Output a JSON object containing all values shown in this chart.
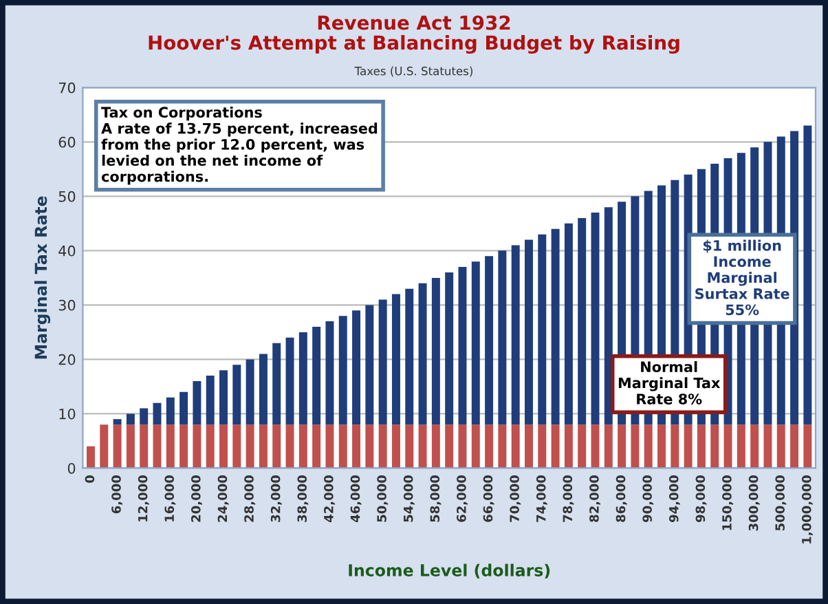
{
  "chart_data": {
    "type": "bar",
    "stacked": true,
    "title": "Revenue Act 1932\nHoover's Attempt at Balancing Budget by Raising",
    "subtitle": "Taxes (U.S. Statutes)",
    "xlabel": "Income Level (dollars)",
    "ylabel": "Marginal Tax Rate",
    "categories": [
      "0",
      null,
      "6,000",
      null,
      "12,000",
      null,
      "16,000",
      null,
      "20,000",
      null,
      "24,000",
      null,
      "28,000",
      null,
      "32,000",
      null,
      "38,000",
      null,
      "42,000",
      null,
      "46,000",
      null,
      "50,000",
      null,
      "54,000",
      null,
      "58,000",
      null,
      "62,000",
      null,
      "66,000",
      null,
      "70,000",
      null,
      "74,000",
      null,
      "78,000",
      null,
      "82,000",
      null,
      "86,000",
      null,
      "90,000",
      null,
      "94,000",
      null,
      "98,000",
      null,
      "150,000",
      null,
      "300,000",
      null,
      "500,000",
      null,
      "1,000,000"
    ],
    "series": [
      {
        "color": "#c0504d",
        "values": [
          4,
          8,
          8,
          8,
          8,
          8,
          8,
          8,
          8,
          8,
          8,
          8,
          8,
          8,
          8,
          8,
          8,
          8,
          8,
          8,
          8,
          8,
          8,
          8,
          8,
          8,
          8,
          8,
          8,
          8,
          8,
          8,
          8,
          8,
          8,
          8,
          8,
          8,
          8,
          8,
          8,
          8,
          8,
          8,
          8,
          8,
          8,
          8,
          8,
          8,
          8,
          8,
          8,
          8,
          8
        ]
      },
      {
        "color": "#1f3d7a",
        "values": [
          0,
          0,
          1,
          2,
          3,
          4,
          5,
          6,
          8,
          9,
          10,
          11,
          12,
          13,
          15,
          16,
          17,
          18,
          19,
          20,
          21,
          22,
          23,
          24,
          25,
          26,
          27,
          28,
          29,
          30,
          31,
          32,
          33,
          34,
          35,
          36,
          37,
          38,
          39,
          40,
          41,
          42,
          43,
          44,
          45,
          46,
          47,
          48,
          49,
          50,
          51,
          52,
          53,
          54,
          55
        ]
      }
    ],
    "ylim": [
      0,
      70
    ],
    "yticks": [
      0,
      10,
      20,
      30,
      40,
      50,
      60,
      70
    ],
    "grid": "y",
    "legend": false,
    "annotations": [
      "Tax on Corporations\nA rate of 13.75 percent, increased\nfrom the prior 12.0 percent, was\nlevied on the net income of\ncorporations.",
      "$1 million\nIncome\nMarginal\nSurtax Rate\n55%",
      "Normal\nMarginal Tax\nRate 8%"
    ]
  }
}
